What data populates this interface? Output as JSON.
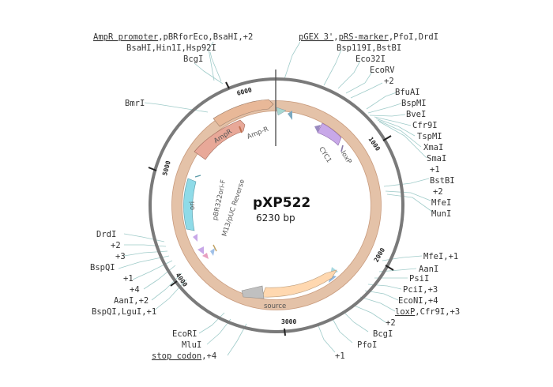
{
  "plasmid": {
    "name": "pXP522",
    "size": "6230 bp"
  },
  "ticks": [
    "1000",
    "2000",
    "3000",
    "4000",
    "5000",
    "6000"
  ],
  "features": {
    "ampr": "AmpR",
    "amp_r": "Amp-R",
    "ori": "ori",
    "pbr322ori_f": "pBR322ori-F",
    "m13_puc_rev": "M13/pUC Reverse",
    "cyc1": "CYC1",
    "loxp": "loxP",
    "source": "source"
  },
  "labels": {
    "top_left_1_a": "AmpR promoter",
    "top_left_1_b": ",pBRforEco,BsaHI,+2",
    "top_left_2": "BsaHI,Hin1I,Hsp92I",
    "top_left_3": "BcgI",
    "bmri": "BmrI",
    "top_right_1_a": "pGEX 3'",
    "top_right_1_b": ",",
    "top_right_1_c": "pRS-marker",
    "top_right_1_d": ",PfoI,DrdI",
    "top_right_2": "Bsp119I,BstBI",
    "top_right_3": "Eco32I",
    "top_right_4": "EcoRV",
    "top_right_5": "+2",
    "r_bfuai": "BfuAI",
    "r_bspmi": "BspMI",
    "r_bvei": "BveI",
    "r_cfr9i": "Cfr9I",
    "r_tspmi": "TspMI",
    "r_xmai": "XmaI",
    "r_smai": "SmaI",
    "r_p1": "+1",
    "r_bstbi": "BstBI",
    "r_p2": "+2",
    "r_mfei": "MfeI",
    "r_muni": "MunI",
    "rb_mfei": "MfeI,+1",
    "rb_aani": "AanI",
    "rb_psii": "PsiI",
    "rb_pcii": "PciI,+3",
    "rb_econi": "EcoNI,+4",
    "rb_loxp_a": "loxP",
    "rb_loxp_b": ",Cfr9I,+3",
    "rb_p2": "+2",
    "rb_bcgi": "BcgI",
    "rb_pfoi": "PfoI",
    "rb_p1": "+1",
    "l_drdi": "DrdI",
    "l_p2": "+2",
    "l_p3": "+3",
    "l_bspqi": "BspQI",
    "l_p1": "+1",
    "l_p4": "+4",
    "l_aani": "AanI,+2",
    "l_bspqi_lgui": "BspQI,LguI,+1",
    "b_ecori": "EcoRI",
    "b_mlui": "MluI",
    "b_stop_a": "stop codon",
    "b_stop_b": ",+4"
  },
  "colors": {
    "backbone": "#7a7a7a",
    "feature_ring": "#e4c2a8",
    "ampr": "#e8a898",
    "ori": "#8fdbe8",
    "cyc1": "#c8a8e8",
    "source": "#ffd8b0",
    "leader": "#9fcbc9"
  }
}
